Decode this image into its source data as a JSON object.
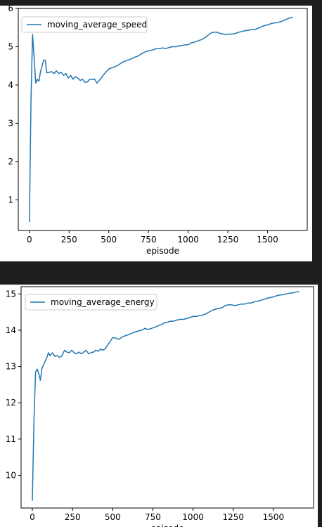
{
  "theme": {
    "page_background": "#1e1e1e",
    "panel_background": "#ffffff",
    "line_color": "#1f77b4"
  },
  "chart_data": [
    {
      "type": "line",
      "title": "",
      "xlabel": "episode",
      "ylabel": "",
      "xlim": [
        -70,
        1750
      ],
      "ylim": [
        0.2,
        6.0
      ],
      "xticks": [
        0,
        250,
        500,
        750,
        1000,
        1250,
        1500
      ],
      "yticks": [
        1,
        2,
        3,
        4,
        5,
        6
      ],
      "grid": false,
      "legend_position": "top-left",
      "series": [
        {
          "name": "moving_average_speed",
          "x": [
            0,
            10,
            20,
            30,
            40,
            50,
            60,
            70,
            80,
            90,
            100,
            110,
            125,
            140,
            155,
            170,
            185,
            200,
            215,
            230,
            245,
            260,
            275,
            290,
            305,
            320,
            335,
            350,
            365,
            380,
            395,
            410,
            425,
            440,
            455,
            470,
            485,
            500,
            520,
            540,
            560,
            580,
            600,
            620,
            640,
            660,
            680,
            700,
            720,
            740,
            760,
            780,
            800,
            820,
            840,
            860,
            880,
            900,
            920,
            940,
            960,
            980,
            1000,
            1020,
            1040,
            1060,
            1080,
            1100,
            1120,
            1140,
            1160,
            1180,
            1200,
            1220,
            1240,
            1260,
            1280,
            1300,
            1320,
            1340,
            1360,
            1380,
            1400,
            1420,
            1440,
            1460,
            1480,
            1500,
            1520,
            1540,
            1560,
            1580,
            1600,
            1620,
            1640,
            1660
          ],
          "y": [
            0.42,
            3.6,
            5.32,
            4.7,
            4.05,
            4.15,
            4.1,
            4.35,
            4.5,
            4.65,
            4.65,
            4.32,
            4.33,
            4.35,
            4.3,
            4.37,
            4.3,
            4.33,
            4.25,
            4.3,
            4.18,
            4.25,
            4.15,
            4.22,
            4.18,
            4.12,
            4.15,
            4.07,
            4.08,
            4.15,
            4.14,
            4.16,
            4.05,
            4.12,
            4.2,
            4.28,
            4.35,
            4.42,
            4.45,
            4.48,
            4.52,
            4.58,
            4.62,
            4.65,
            4.68,
            4.72,
            4.75,
            4.8,
            4.85,
            4.88,
            4.9,
            4.92,
            4.95,
            4.95,
            4.97,
            4.95,
            4.98,
            5.0,
            5.0,
            5.02,
            5.03,
            5.05,
            5.05,
            5.1,
            5.12,
            5.15,
            5.18,
            5.22,
            5.28,
            5.35,
            5.38,
            5.38,
            5.35,
            5.33,
            5.32,
            5.33,
            5.33,
            5.35,
            5.38,
            5.4,
            5.42,
            5.43,
            5.45,
            5.45,
            5.48,
            5.52,
            5.55,
            5.57,
            5.6,
            5.62,
            5.63,
            5.65,
            5.68,
            5.72,
            5.75,
            5.77
          ]
        }
      ]
    },
    {
      "type": "line",
      "title": "",
      "xlabel": "episode",
      "ylabel": "",
      "xlim": [
        -70,
        1750
      ],
      "ylim": [
        9.1,
        15.2
      ],
      "xticks": [
        0,
        250,
        500,
        750,
        1000,
        1250,
        1500
      ],
      "yticks": [
        10,
        11,
        12,
        13,
        14,
        15
      ],
      "grid": false,
      "legend_position": "top-left",
      "series": [
        {
          "name": "moving_average_energy",
          "x": [
            0,
            10,
            20,
            30,
            40,
            50,
            60,
            70,
            80,
            90,
            100,
            110,
            125,
            140,
            155,
            170,
            185,
            200,
            215,
            230,
            245,
            260,
            275,
            290,
            305,
            320,
            335,
            350,
            365,
            380,
            395,
            410,
            425,
            440,
            455,
            470,
            485,
            500,
            520,
            540,
            560,
            580,
            600,
            620,
            640,
            660,
            680,
            700,
            720,
            740,
            760,
            780,
            800,
            820,
            840,
            860,
            880,
            900,
            920,
            940,
            960,
            980,
            1000,
            1020,
            1040,
            1060,
            1080,
            1100,
            1120,
            1140,
            1160,
            1180,
            1200,
            1220,
            1240,
            1260,
            1280,
            1300,
            1320,
            1340,
            1360,
            1380,
            1400,
            1420,
            1440,
            1460,
            1480,
            1500,
            1520,
            1540,
            1560,
            1580,
            1600,
            1620,
            1640,
            1660
          ],
          "y": [
            9.3,
            11.5,
            12.85,
            12.93,
            12.8,
            12.62,
            12.95,
            13.05,
            13.15,
            13.25,
            13.38,
            13.3,
            13.38,
            13.28,
            13.3,
            13.25,
            13.3,
            13.45,
            13.4,
            13.38,
            13.45,
            13.38,
            13.35,
            13.4,
            13.35,
            13.4,
            13.45,
            13.35,
            13.38,
            13.4,
            13.45,
            13.42,
            13.48,
            13.45,
            13.5,
            13.6,
            13.7,
            13.8,
            13.78,
            13.75,
            13.82,
            13.85,
            13.88,
            13.92,
            13.95,
            13.98,
            14.0,
            14.05,
            14.02,
            14.05,
            14.08,
            14.12,
            14.15,
            14.2,
            14.22,
            14.25,
            14.25,
            14.28,
            14.3,
            14.3,
            14.32,
            14.35,
            14.38,
            14.38,
            14.4,
            14.42,
            14.45,
            14.5,
            14.55,
            14.58,
            14.6,
            14.62,
            14.68,
            14.7,
            14.7,
            14.68,
            14.7,
            14.72,
            14.72,
            14.75,
            14.75,
            14.78,
            14.8,
            14.82,
            14.85,
            14.88,
            14.9,
            14.92,
            14.95,
            14.97,
            14.98,
            15.0,
            15.02,
            15.03,
            15.05,
            15.07
          ]
        }
      ]
    }
  ]
}
